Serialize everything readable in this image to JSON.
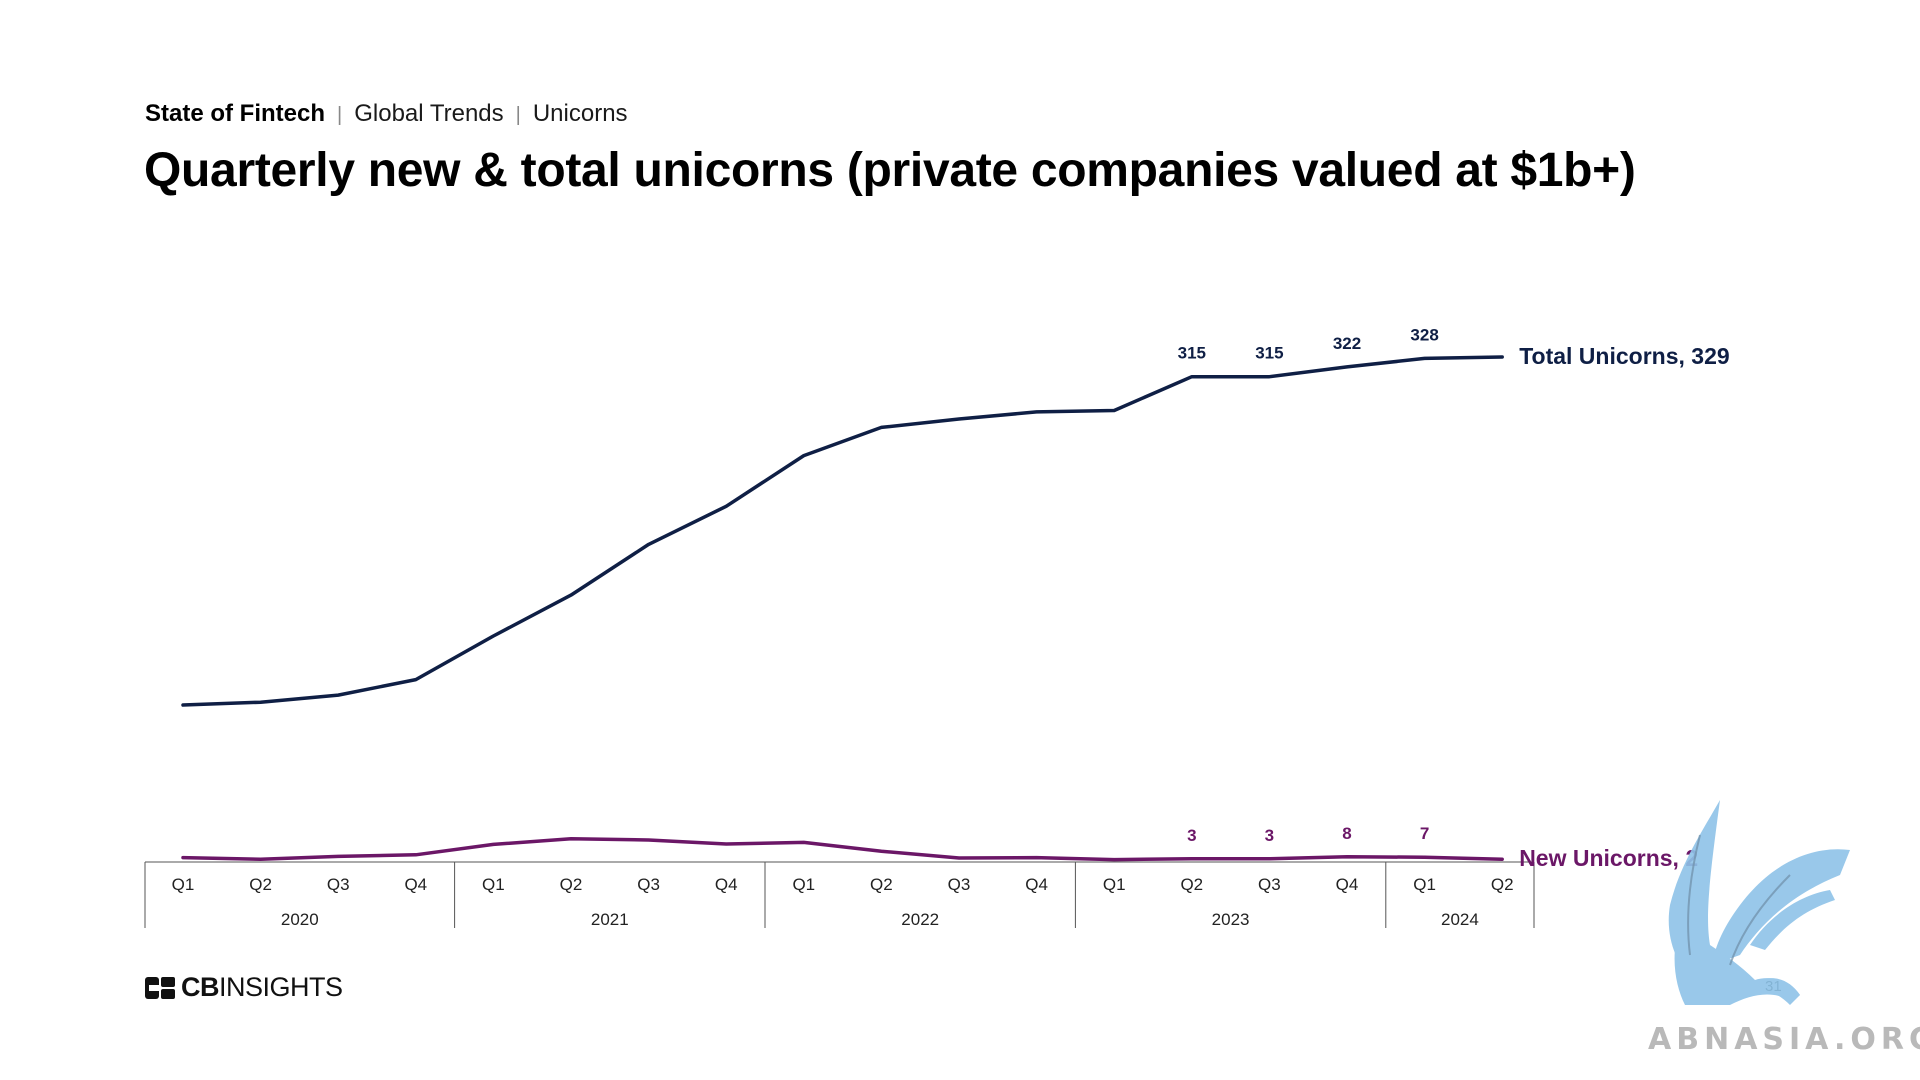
{
  "header": {
    "breadcrumb": [
      "State of Fintech",
      "Global Trends",
      "Unicorns"
    ],
    "title": "Quarterly new & total unicorns (private companies valued at $1b+)"
  },
  "brand": {
    "logo_text_bold": "CB",
    "logo_text_rest": "INSIGHTS",
    "logo_icon": "cb-insights-logo-icon"
  },
  "page_number": "31",
  "watermark": {
    "text": "ABNASIA.ORG",
    "icon": "griffin-icon"
  },
  "colors": {
    "total": "#0f1f45",
    "new": "#6b1767",
    "axis": "#555555"
  },
  "chart_data": {
    "type": "line",
    "categories": [
      "Q1",
      "Q2",
      "Q3",
      "Q4",
      "Q1",
      "Q2",
      "Q3",
      "Q4",
      "Q1",
      "Q2",
      "Q3",
      "Q4",
      "Q1",
      "Q2",
      "Q3",
      "Q4",
      "Q1",
      "Q2"
    ],
    "groups": [
      {
        "label": "2020",
        "count": 4
      },
      {
        "label": "2021",
        "count": 4
      },
      {
        "label": "2022",
        "count": 4
      },
      {
        "label": "2023",
        "count": 4
      },
      {
        "label": "2024",
        "count": 2
      }
    ],
    "series": [
      {
        "name": "Total Unicorns",
        "end_label": "Total Unicorns, 329",
        "values": [
          82,
          84,
          89,
          100,
          131,
          160,
          196,
          223,
          259,
          279,
          285,
          290,
          291,
          315,
          315,
          322,
          328,
          329
        ],
        "data_labels": {
          "13": "315",
          "14": "315",
          "15": "322",
          "16": "328"
        }
      },
      {
        "name": "New Unicorns",
        "end_label": "New Unicorns, 2",
        "values": [
          6,
          2,
          9,
          13,
          39,
          53,
          50,
          40,
          44,
          22,
          5,
          6,
          1,
          3,
          3,
          8,
          7,
          2
        ],
        "data_labels": {
          "13": "3",
          "14": "3",
          "15": "8",
          "16": "7"
        }
      }
    ],
    "grid": false,
    "legend": "end-of-line labels"
  }
}
